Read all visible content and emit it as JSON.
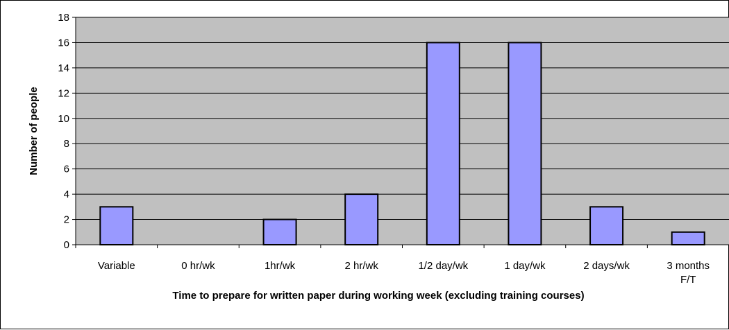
{
  "chart_data": {
    "type": "bar",
    "categories": [
      [
        "Variable"
      ],
      [
        "0 hr/wk"
      ],
      [
        "1hr/wk"
      ],
      [
        "2 hr/wk"
      ],
      [
        "1/2 day/wk"
      ],
      [
        "1 day/wk"
      ],
      [
        "2 days/wk"
      ],
      [
        "3 months",
        "F/T"
      ]
    ],
    "values": [
      3,
      0,
      2,
      4,
      16,
      16,
      3,
      1
    ],
    "xlabel": "Time to prepare for written paper during working week (excluding training courses)",
    "ylabel": "Number of people",
    "ylim": [
      0,
      18
    ],
    "yticks": [
      0,
      2,
      4,
      6,
      8,
      10,
      12,
      14,
      16,
      18
    ],
    "grid": "horizontal",
    "legend": "none",
    "colors": {
      "plot_background": "#c0c0c0",
      "bar_fill": "#9999ff",
      "bar_stroke": "#000000",
      "gridline": "#000000"
    }
  }
}
